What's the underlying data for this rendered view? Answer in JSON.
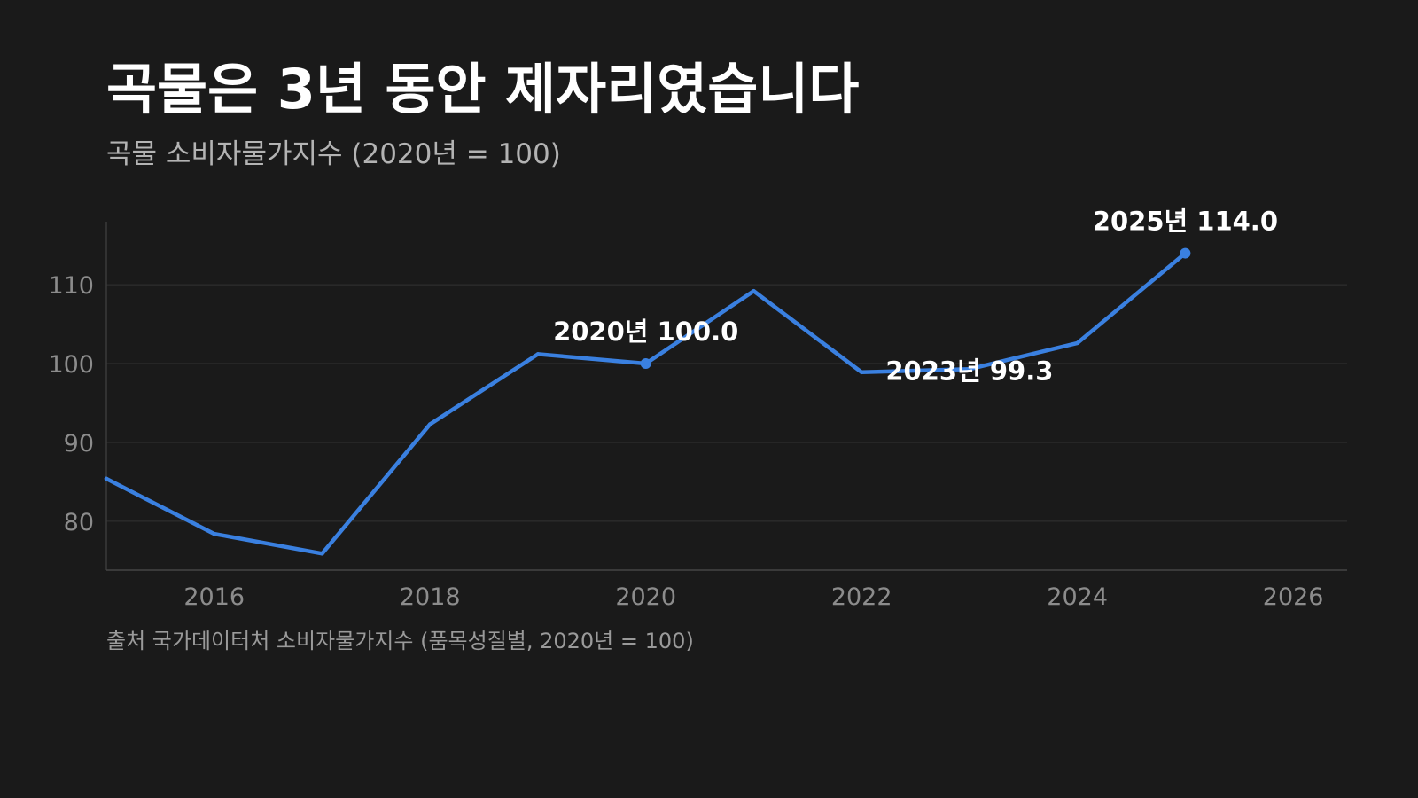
{
  "title": "곡물은 3년 동안 제자리였습니다",
  "subtitle": "곡물 소비자물가지수 (2020년 = 100)",
  "source": "출처 국가데이터처 소비자물가지수 (품목성질별, 2020년 = 100)",
  "colors": {
    "background": "#1a1a1a",
    "line": "#3a80e0",
    "grid": "#333333",
    "text": "#ffffff",
    "muted": "#8c8c8c"
  },
  "chart_data": {
    "type": "line",
    "title": "곡물은 3년 동안 제자리였습니다",
    "subtitle": "곡물 소비자물가지수 (2020년 = 100)",
    "xlabel": "",
    "ylabel": "",
    "x": [
      2015,
      2016,
      2017,
      2018,
      2019,
      2020,
      2021,
      2022,
      2023,
      2024,
      2025
    ],
    "series": [
      {
        "values": [
          85.4,
          78.4,
          75.9,
          92.3,
          101.2,
          100.0,
          109.2,
          98.9,
          99.3,
          102.6,
          114.0
        ]
      }
    ],
    "xlim": [
      2015,
      2026.5
    ],
    "ylim": [
      73.8,
      118.0
    ],
    "x_ticks": [
      "2016",
      "2018",
      "2020",
      "2022",
      "2024",
      "2026"
    ],
    "y_ticks": [
      "80",
      "90",
      "100",
      "110"
    ],
    "grid": "horizontal",
    "legend": "none",
    "annotations": [
      {
        "x": 2020,
        "y": 100.0,
        "label": "2020년 100.0",
        "marker": true
      },
      {
        "x": 2023,
        "y": 99.3,
        "label": "2023년 99.3",
        "marker": false
      },
      {
        "x": 2025,
        "y": 114.0,
        "label": "2025년 114.0",
        "marker": true
      }
    ]
  }
}
